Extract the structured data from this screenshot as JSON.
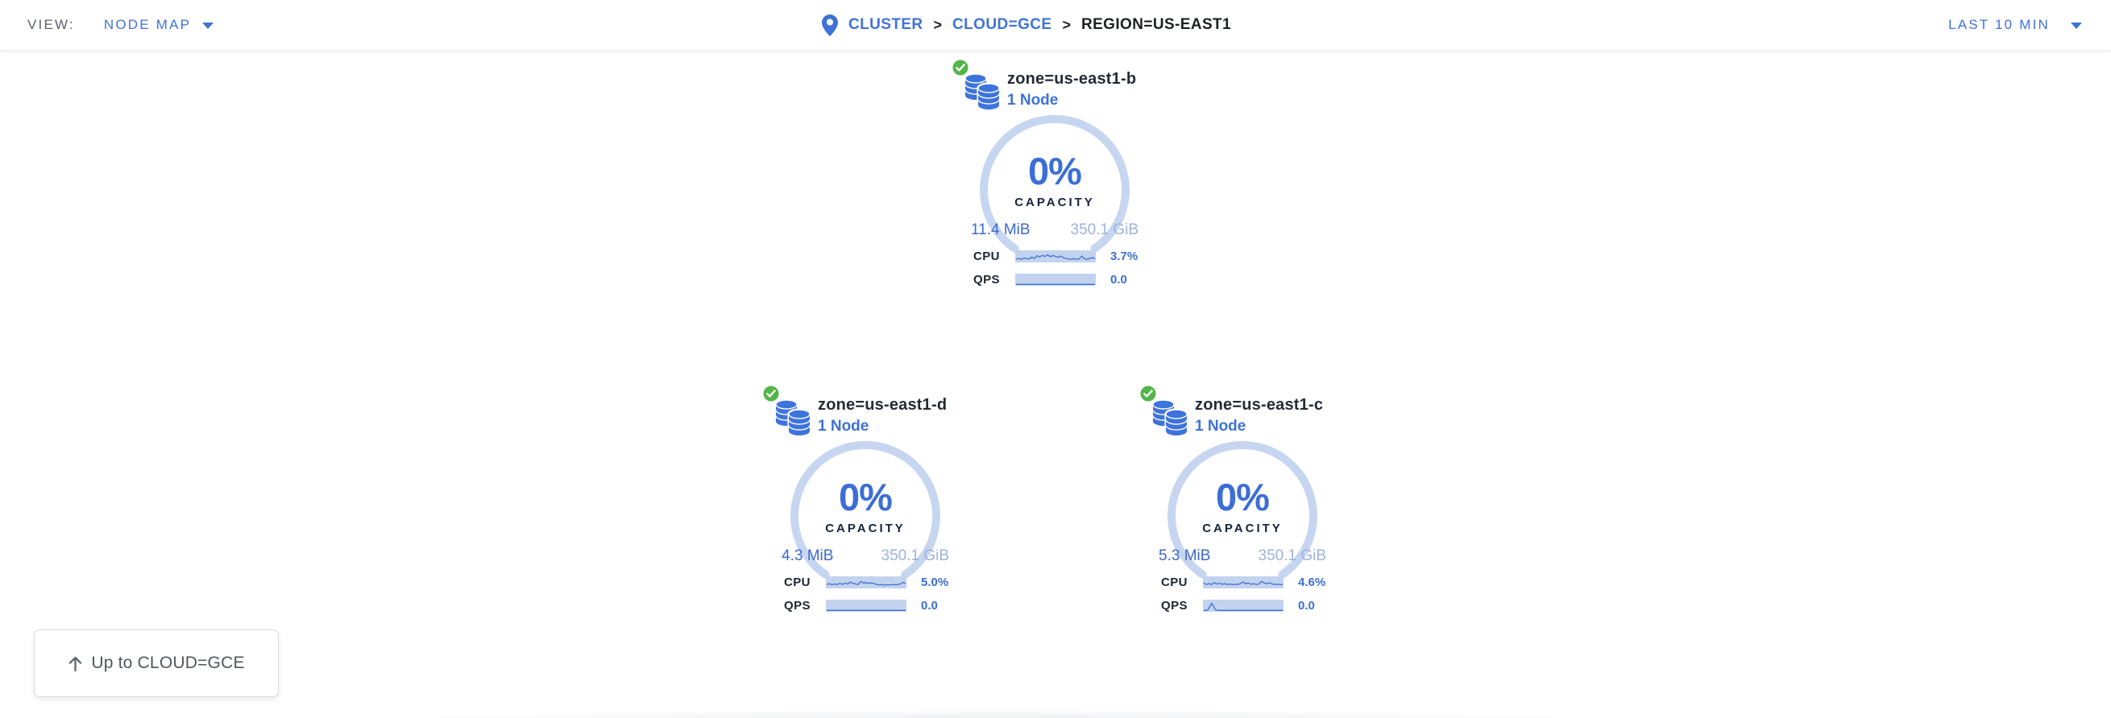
{
  "header": {
    "view": {
      "label": "VIEW:",
      "value": "NODE MAP"
    },
    "breadcrumb": {
      "separator": ">",
      "items": [
        {
          "label": "CLUSTER"
        },
        {
          "label": "CLOUD=GCE"
        },
        {
          "label": "REGION=US-EAST1"
        }
      ]
    },
    "time_range": {
      "value": "LAST 10 MIN"
    }
  },
  "colors": {
    "link_blue": "#3f72d6",
    "gauge_arc": "#c7d6f0",
    "gauge_pct": "#3c6ed5",
    "spark_bg": "#c3d3ef",
    "spark_line": "#3b6fd6",
    "status_green": "#52b548",
    "db_icon_blue": "#3e73dc",
    "title_dark": "#242b35",
    "muted_value": "#9db2de"
  },
  "zones": [
    {
      "name": "zone=us-east1-b",
      "nodes": "1 Node",
      "status": "healthy",
      "capacity_pct": "0%",
      "capacity_label": "CAPACITY",
      "used": "11.4 MiB",
      "total": "350.1 GiB",
      "cpu_label": "CPU",
      "cpu_value": "3.7%",
      "qps_label": "QPS",
      "qps_value": "0.0",
      "cpu_spark": [
        0.25,
        0.3,
        0.22,
        0.35,
        0.28,
        0.25,
        0.45,
        0.3,
        0.58,
        0.45,
        0.62,
        0.5,
        0.68,
        0.48,
        0.6,
        0.52,
        0.42,
        0.55,
        0.38,
        0.3,
        0.26,
        0.22,
        0.28,
        0.24,
        0.26,
        0.55,
        0.28,
        0.22,
        0.3,
        0.38,
        0.3
      ],
      "qps_spark": [
        0.04,
        0.04,
        0.04,
        0.04,
        0.04,
        0.04,
        0.04,
        0.04,
        0.04,
        0.04,
        0.04,
        0.04,
        0.04,
        0.04,
        0.04,
        0.04,
        0.04,
        0.04,
        0.04,
        0.04,
        0.04
      ]
    },
    {
      "name": "zone=us-east1-d",
      "nodes": "1 Node",
      "status": "healthy",
      "capacity_pct": "0%",
      "capacity_label": "CAPACITY",
      "used": "4.3 MiB",
      "total": "350.1 GiB",
      "cpu_label": "CPU",
      "cpu_value": "5.0%",
      "qps_label": "QPS",
      "qps_value": "0.0",
      "cpu_spark": [
        0.3,
        0.38,
        0.28,
        0.35,
        0.3,
        0.42,
        0.32,
        0.45,
        0.35,
        0.55,
        0.42,
        0.35,
        0.3,
        0.62,
        0.45,
        0.5,
        0.4,
        0.48,
        0.38,
        0.3,
        0.25,
        0.3,
        0.22,
        0.28,
        0.25,
        0.3,
        0.26,
        0.3,
        0.35,
        0.52,
        0.4
      ],
      "qps_spark": [
        0.04,
        0.04,
        0.04,
        0.04,
        0.04,
        0.04,
        0.04,
        0.04,
        0.04,
        0.04,
        0.04,
        0.04,
        0.04,
        0.04,
        0.04,
        0.04,
        0.04,
        0.04,
        0.04,
        0.04,
        0.04
      ]
    },
    {
      "name": "zone=us-east1-c",
      "nodes": "1 Node",
      "status": "healthy",
      "capacity_pct": "0%",
      "capacity_label": "CAPACITY",
      "used": "5.3 MiB",
      "total": "350.1 GiB",
      "cpu_label": "CPU",
      "cpu_value": "4.6%",
      "qps_label": "QPS",
      "qps_value": "0.0",
      "cpu_spark": [
        0.45,
        0.3,
        0.38,
        0.3,
        0.5,
        0.35,
        0.42,
        0.32,
        0.38,
        0.3,
        0.35,
        0.28,
        0.32,
        0.3,
        0.42,
        0.55,
        0.38,
        0.45,
        0.32,
        0.38,
        0.3,
        0.35,
        0.62,
        0.45,
        0.38,
        0.48,
        0.35,
        0.3,
        0.32,
        0.3,
        0.28
      ],
      "qps_spark": [
        0.04,
        0.06,
        0.78,
        0.08,
        0.04,
        0.04,
        0.04,
        0.04,
        0.04,
        0.04,
        0.04,
        0.04,
        0.04,
        0.04,
        0.04,
        0.04,
        0.04,
        0.04,
        0.04,
        0.04,
        0.04
      ]
    }
  ],
  "up_button": {
    "label": "Up to CLOUD=GCE"
  }
}
